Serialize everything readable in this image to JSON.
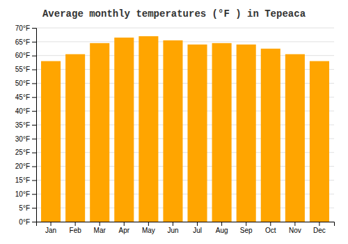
{
  "chart_data": {
    "type": "bar",
    "title": "Average monthly temperatures (°F ) in Tepeaca",
    "categories": [
      "Jan",
      "Feb",
      "Mar",
      "Apr",
      "May",
      "Jun",
      "Jul",
      "Aug",
      "Sep",
      "Oct",
      "Nov",
      "Dec"
    ],
    "values": [
      58,
      60.5,
      64.5,
      66.5,
      67,
      65.5,
      64,
      64.5,
      64,
      62.5,
      60.5,
      58
    ],
    "color": "#FFA500",
    "ylim": [
      0,
      70
    ],
    "yticks": [
      {
        "value": 0,
        "label": "0°F"
      },
      {
        "value": 5,
        "label": "5°F"
      },
      {
        "value": 10,
        "label": "10°F"
      },
      {
        "value": 15,
        "label": "15°F"
      },
      {
        "value": 20,
        "label": "20°F"
      },
      {
        "value": 25,
        "label": "25°F"
      },
      {
        "value": 30,
        "label": "30°F"
      },
      {
        "value": 35,
        "label": "35°F"
      },
      {
        "value": 40,
        "label": "40°F"
      },
      {
        "value": 45,
        "label": "45°F"
      },
      {
        "value": 50,
        "label": "50°F"
      },
      {
        "value": 55,
        "label": "55°F"
      },
      {
        "value": 60,
        "label": "60°F"
      },
      {
        "value": 65,
        "label": "65°F"
      },
      {
        "value": 70,
        "label": "70°F"
      }
    ],
    "grid": true
  }
}
